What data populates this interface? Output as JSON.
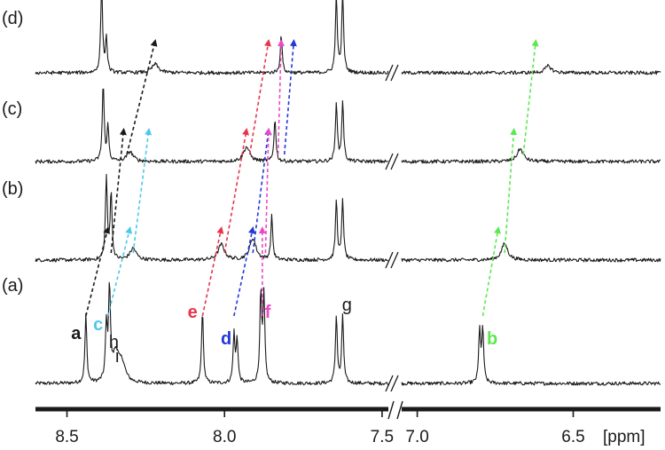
{
  "chart_data": {
    "type": "line",
    "xlabel": "[ppm]",
    "x_axis_reversed": true,
    "x_axis_broken": true,
    "x_segments": [
      {
        "from": 8.6,
        "to": 7.48,
        "ticks": [
          "8.5",
          "8.0",
          "7.5"
        ],
        "tick_values": [
          8.5,
          8.0,
          7.5
        ]
      },
      {
        "from": 7.05,
        "to": 6.22,
        "ticks": [
          "7.0",
          "6.5"
        ],
        "tick_values": [
          7.0,
          6.5
        ]
      }
    ],
    "series": [
      {
        "name": "(a)",
        "peaks": [
          {
            "label": "a",
            "ppm": 8.44,
            "h": 0.7
          },
          {
            "label": "c",
            "ppm": 8.375,
            "h": 0.55
          },
          {
            "label": "",
            "ppm": 8.365,
            "h": 0.95
          },
          {
            "label": "h",
            "ppm": 8.345,
            "h": 0.3
          },
          {
            "label": "i",
            "ppm": 8.325,
            "h": 0.18
          },
          {
            "label": "e",
            "ppm": 8.07,
            "h": 0.75
          },
          {
            "label": "d",
            "ppm": 7.97,
            "h": 0.5
          },
          {
            "label": "",
            "ppm": 7.96,
            "h": 0.45
          },
          {
            "label": "f",
            "ppm": 7.885,
            "h": 0.9
          },
          {
            "label": "",
            "ppm": 7.875,
            "h": 0.88
          },
          {
            "label": "g",
            "ppm": 7.645,
            "h": 0.7
          },
          {
            "label": "",
            "ppm": 7.625,
            "h": 0.7
          },
          {
            "label": "b",
            "ppm": 6.8,
            "h": 0.55
          },
          {
            "label": "",
            "ppm": 6.79,
            "h": 0.55
          }
        ]
      },
      {
        "name": "(b)",
        "peaks": [
          {
            "label": "",
            "ppm": 8.375,
            "h": 0.85
          },
          {
            "label": "",
            "ppm": 8.36,
            "h": 0.7
          },
          {
            "label": "",
            "ppm": 8.29,
            "h": 0.12
          },
          {
            "label": "",
            "ppm": 8.01,
            "h": 0.16
          },
          {
            "label": "",
            "ppm": 7.91,
            "h": 0.22
          },
          {
            "label": "",
            "ppm": 7.85,
            "h": 0.45
          },
          {
            "label": "",
            "ppm": 7.645,
            "h": 0.62
          },
          {
            "label": "",
            "ppm": 7.625,
            "h": 0.62
          },
          {
            "label": "",
            "ppm": 6.72,
            "h": 0.17
          }
        ]
      },
      {
        "name": "(c)",
        "peaks": [
          {
            "label": "",
            "ppm": 8.385,
            "h": 0.8
          },
          {
            "label": "",
            "ppm": 8.37,
            "h": 0.35
          },
          {
            "label": "",
            "ppm": 8.3,
            "h": 0.1
          },
          {
            "label": "",
            "ppm": 7.93,
            "h": 0.15
          },
          {
            "label": "",
            "ppm": 7.84,
            "h": 0.45
          },
          {
            "label": "",
            "ppm": 7.645,
            "h": 0.62
          },
          {
            "label": "",
            "ppm": 7.625,
            "h": 0.62
          },
          {
            "label": "",
            "ppm": 6.67,
            "h": 0.13
          }
        ]
      },
      {
        "name": "(d)",
        "peaks": [
          {
            "label": "",
            "ppm": 8.39,
            "h": 0.9
          },
          {
            "label": "",
            "ppm": 8.375,
            "h": 0.35
          },
          {
            "label": "",
            "ppm": 8.22,
            "h": 0.09
          },
          {
            "label": "",
            "ppm": 7.82,
            "h": 0.4
          },
          {
            "label": "",
            "ppm": 7.645,
            "h": 0.8
          },
          {
            "label": "",
            "ppm": 7.625,
            "h": 0.8
          },
          {
            "label": "",
            "ppm": 6.58,
            "h": 0.07
          }
        ]
      }
    ],
    "annotations": [
      {
        "text": "a",
        "ppm": 8.47,
        "color": "#1a1a1a",
        "bold": true
      },
      {
        "text": "c",
        "ppm": 8.4,
        "color": "#4cc8e8",
        "bold": true
      },
      {
        "text": "h",
        "ppm": 8.35,
        "color": "#1a1a1a",
        "bold": false
      },
      {
        "text": "i",
        "ppm": 8.33,
        "color": "#1a1a1a",
        "bold": false
      },
      {
        "text": "e",
        "ppm": 8.1,
        "color": "#e8344a",
        "bold": true
      },
      {
        "text": "d",
        "ppm": 7.995,
        "color": "#2438d8",
        "bold": true
      },
      {
        "text": "f",
        "ppm": 7.855,
        "color": "#ee48c8",
        "bold": true
      },
      {
        "text": "g",
        "ppm": 7.61,
        "color": "#1a1a1a",
        "bold": false
      },
      {
        "text": "b",
        "ppm": 6.76,
        "color": "#5ce850",
        "bold": true
      }
    ],
    "shift_arrows": [
      {
        "color": "#1a1a1a",
        "from": {
          "series": "(a)",
          "ppm": 8.44
        },
        "to": {
          "series": "(b)",
          "ppm": 8.37
        }
      },
      {
        "color": "#1a1a1a",
        "from": {
          "series": "(b)",
          "ppm": 8.36
        },
        "to": {
          "series": "(c)",
          "ppm": 8.32
        }
      },
      {
        "color": "#1a1a1a",
        "from": {
          "series": "(c)",
          "ppm": 8.31
        },
        "to": {
          "series": "(d)",
          "ppm": 8.22
        }
      },
      {
        "color": "#4cc8e8",
        "from": {
          "series": "(a)",
          "ppm": 8.37
        },
        "to": {
          "series": "(b)",
          "ppm": 8.3
        }
      },
      {
        "color": "#4cc8e8",
        "from": {
          "series": "(b)",
          "ppm": 8.29
        },
        "to": {
          "series": "(c)",
          "ppm": 8.24
        }
      },
      {
        "color": "#e8344a",
        "from": {
          "series": "(a)",
          "ppm": 8.07
        },
        "to": {
          "series": "(b)",
          "ppm": 8.01
        }
      },
      {
        "color": "#e8344a",
        "from": {
          "series": "(b)",
          "ppm": 8.0
        },
        "to": {
          "series": "(c)",
          "ppm": 7.93
        }
      },
      {
        "color": "#e8344a",
        "from": {
          "series": "(c)",
          "ppm": 7.92
        },
        "to": {
          "series": "(d)",
          "ppm": 7.86
        }
      },
      {
        "color": "#2438d8",
        "from": {
          "series": "(a)",
          "ppm": 7.97
        },
        "to": {
          "series": "(b)",
          "ppm": 7.91
        }
      },
      {
        "color": "#2438d8",
        "from": {
          "series": "(b)",
          "ppm": 7.91
        },
        "to": {
          "series": "(c)",
          "ppm": 7.86
        }
      },
      {
        "color": "#2438d8",
        "from": {
          "series": "(c)",
          "ppm": 7.81
        },
        "to": {
          "series": "(d)",
          "ppm": 7.78
        }
      },
      {
        "color": "#ee48c8",
        "from": {
          "series": "(a)",
          "ppm": 7.88
        },
        "to": {
          "series": "(b)",
          "ppm": 7.88
        }
      },
      {
        "color": "#ee48c8",
        "from": {
          "series": "(b)",
          "ppm": 7.87
        },
        "to": {
          "series": "(c)",
          "ppm": 7.86
        }
      },
      {
        "color": "#ee48c8",
        "from": {
          "series": "(c)",
          "ppm": 7.83
        },
        "to": {
          "series": "(d)",
          "ppm": 7.82
        }
      },
      {
        "color": "#5ce850",
        "from": {
          "series": "(a)",
          "ppm": 6.79
        },
        "to": {
          "series": "(b)",
          "ppm": 6.74
        }
      },
      {
        "color": "#5ce850",
        "from": {
          "series": "(b)",
          "ppm": 6.72
        },
        "to": {
          "series": "(c)",
          "ppm": 6.69
        }
      },
      {
        "color": "#5ce850",
        "from": {
          "series": "(c)",
          "ppm": 6.66
        },
        "to": {
          "series": "(d)",
          "ppm": 6.62
        }
      }
    ],
    "grid": false
  }
}
